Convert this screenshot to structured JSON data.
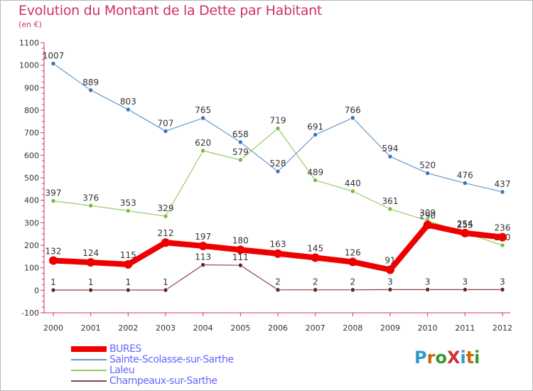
{
  "title": "Evolution du Montant de la Dette par Habitant",
  "subtitle": "(en €)",
  "logo": {
    "text": "ProXiti",
    "colors": [
      "#3399cc",
      "#cc6600",
      "#339933",
      "#cc3333",
      "#3399cc",
      "#cc6600",
      "#339933"
    ]
  },
  "colors": {
    "title": "#cc3366",
    "legend_text": "#6666ff",
    "axis_text": "#333333",
    "label_text": "#333333"
  },
  "chart_data": {
    "type": "line",
    "title": "Evolution du Montant de la Dette par Habitant",
    "subtitle": "(en €)",
    "xlabel": "",
    "ylabel": "",
    "x": [
      "2000",
      "2001",
      "2002",
      "2003",
      "2004",
      "2005",
      "2006",
      "2007",
      "2008",
      "2009",
      "2010",
      "2011",
      "2012"
    ],
    "ylim": [
      -100,
      1100
    ],
    "yticks": [
      -100,
      0,
      100,
      200,
      300,
      400,
      500,
      600,
      700,
      800,
      900,
      1000,
      1100
    ],
    "grid": false,
    "legend_position": "bottom-left",
    "series": [
      {
        "name": "Sainte-Scolasse-sur-Sarthe",
        "color": "#6699cc",
        "marker": "#3377bb",
        "width": 1.2,
        "values": [
          1007,
          889,
          803,
          707,
          765,
          658,
          528,
          691,
          766,
          594,
          520,
          476,
          437
        ]
      },
      {
        "name": "Laleu",
        "color": "#99cc66",
        "marker": "#77bb33",
        "width": 1.2,
        "values": [
          397,
          376,
          353,
          329,
          620,
          579,
          719,
          489,
          440,
          361,
          309,
          255,
          200
        ],
        "labels": [
          "397",
          "376",
          "353",
          "329",
          "620",
          "579",
          "719",
          "489",
          "440",
          "361",
          "309",
          "255",
          "200"
        ]
      },
      {
        "name": "Champeaux-sur-Sarthe",
        "color": "#884444",
        "marker": "#662222",
        "width": 1.2,
        "values": [
          1,
          1,
          1,
          1,
          113,
          111,
          2,
          2,
          2,
          3,
          3,
          3,
          3
        ]
      },
      {
        "name": "BURES",
        "color": "#ee0000",
        "marker": "#ee0000",
        "width": 8,
        "values": [
          132,
          124,
          115,
          212,
          197,
          180,
          163,
          145,
          126,
          91,
          290,
          254,
          236
        ]
      }
    ]
  }
}
